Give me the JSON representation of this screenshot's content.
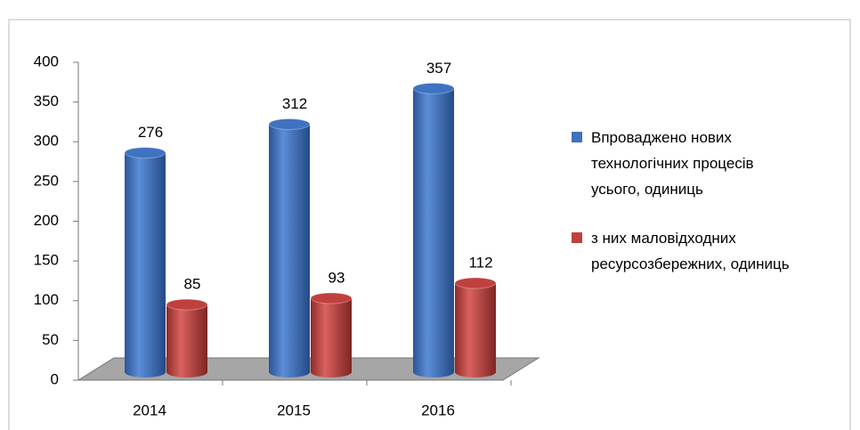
{
  "chart_data": {
    "type": "bar3d",
    "categories": [
      "2014",
      "2015",
      "2016"
    ],
    "series": [
      {
        "name": "Впроваджено нових технологічних процесів усього, одиниць",
        "color": "#3f72c0",
        "values": [
          276,
          312,
          357
        ]
      },
      {
        "name": "з них маловідходних ресурсозбережних, одиниць",
        "color": "#c0403d",
        "values": [
          85,
          93,
          112
        ]
      }
    ],
    "ylim": [
      0,
      400
    ],
    "yticks": [
      0,
      50,
      100,
      150,
      200,
      250,
      300,
      350,
      400
    ],
    "legend": "right"
  }
}
